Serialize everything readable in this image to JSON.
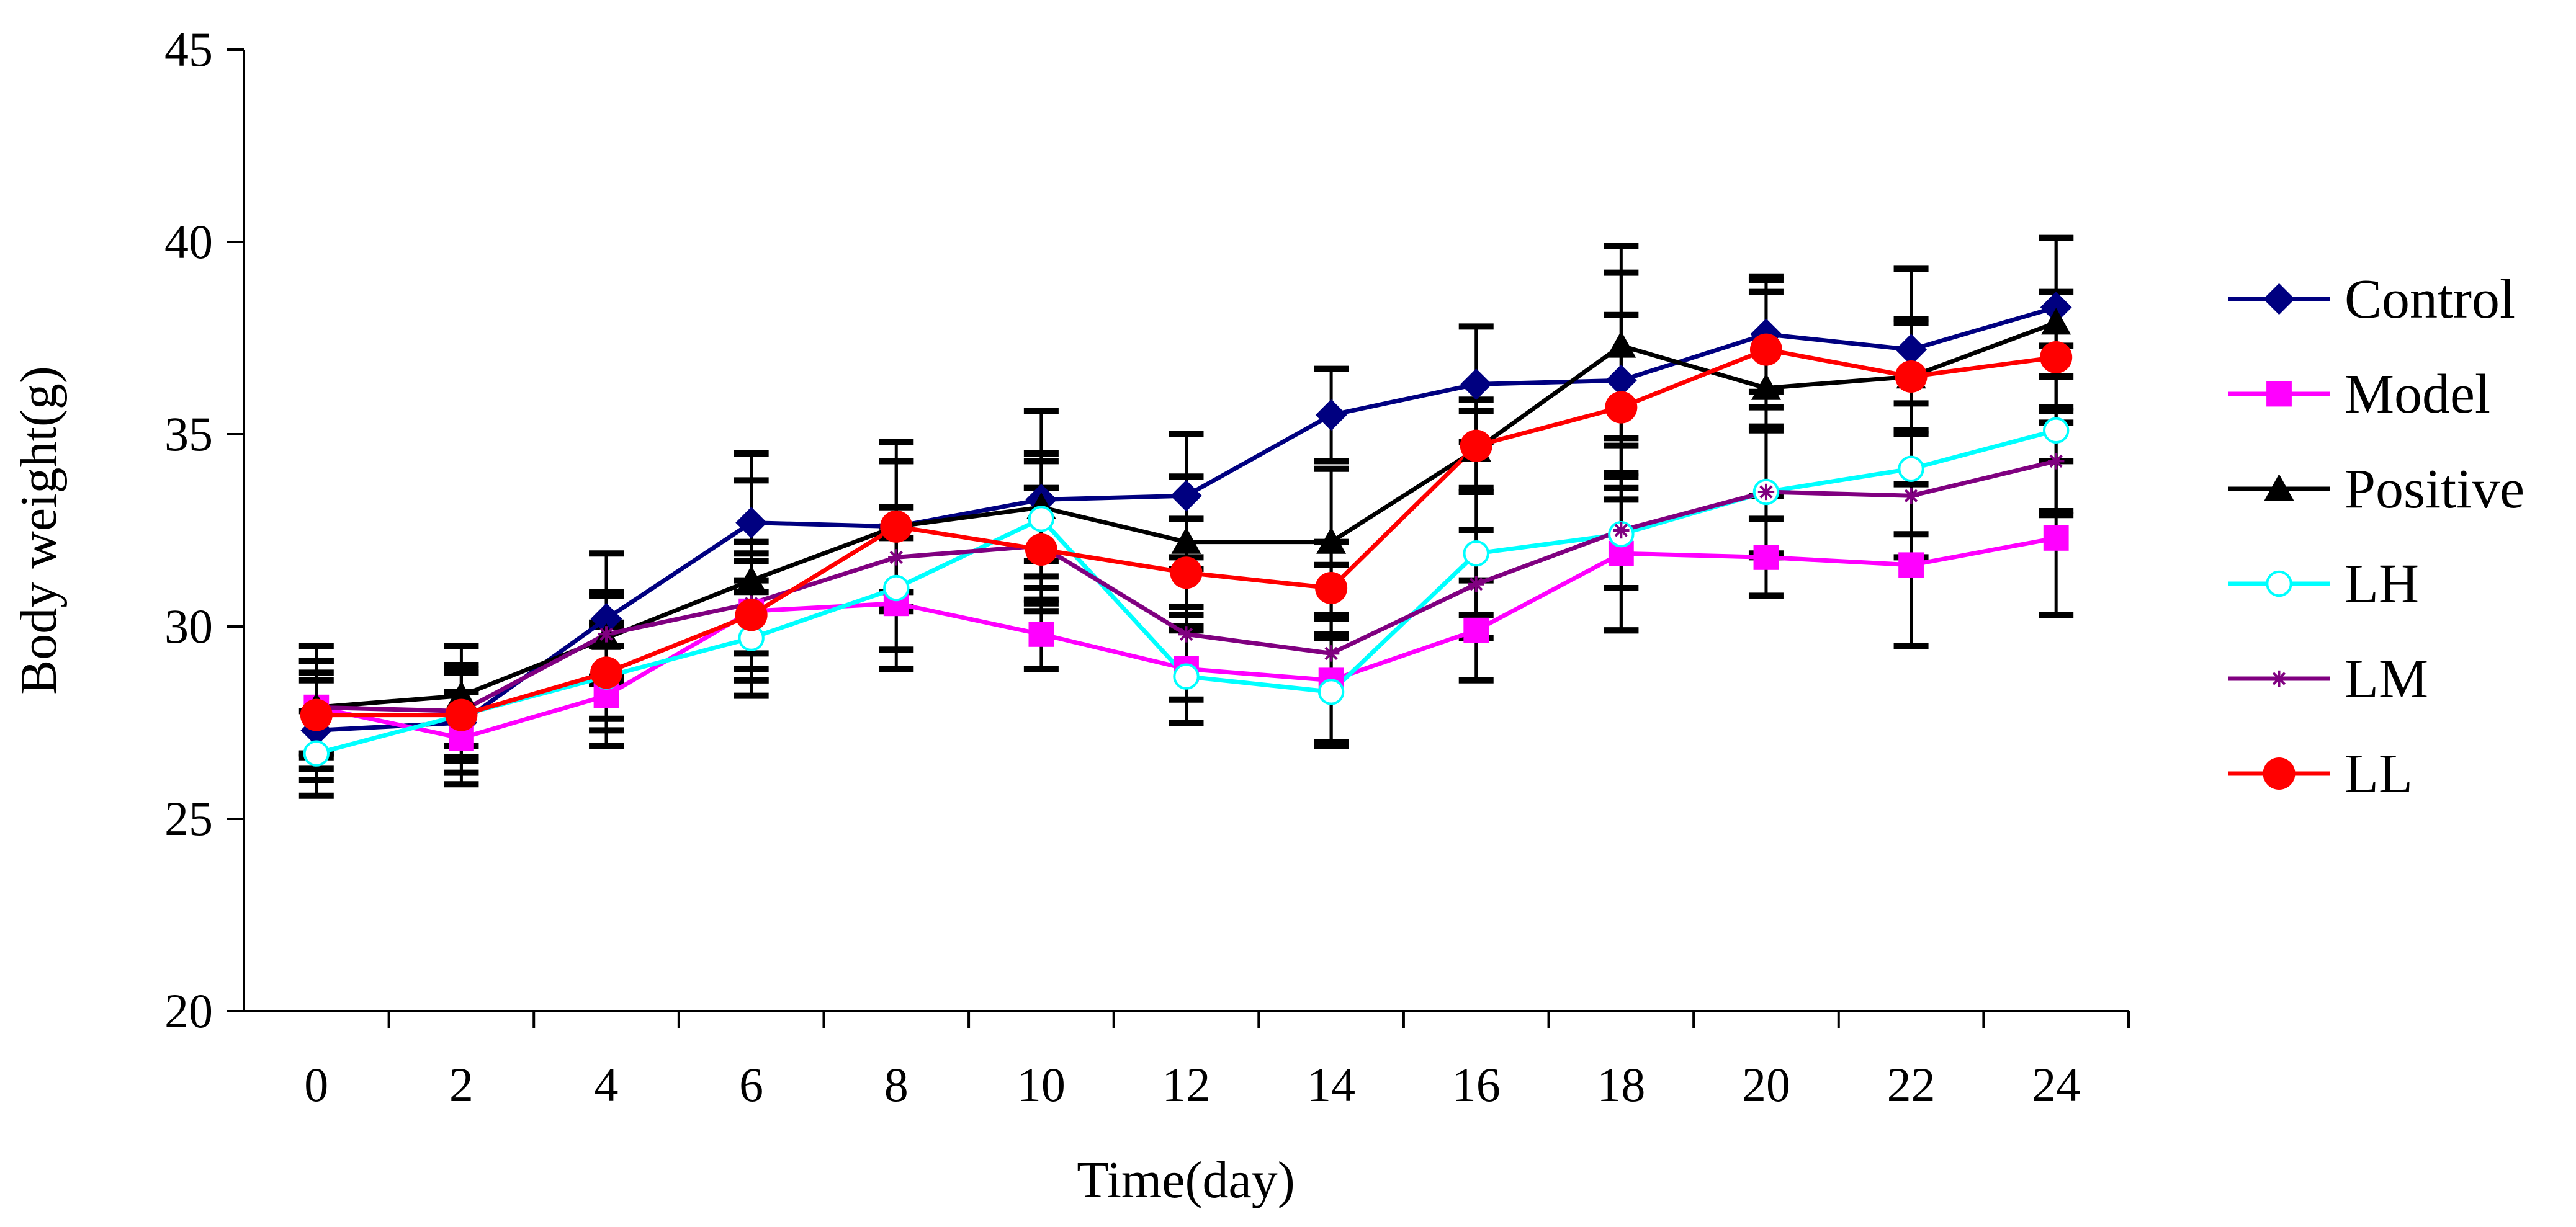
{
  "chart_data": {
    "type": "line",
    "title": "",
    "xlabel": "Time(day)",
    "ylabel": "Body weight(g)",
    "x": [
      0,
      2,
      4,
      6,
      8,
      10,
      12,
      14,
      16,
      18,
      20,
      22,
      24
    ],
    "xticks": [
      "0",
      "2",
      "4",
      "6",
      "8",
      "10",
      "12",
      "14",
      "16",
      "18",
      "20",
      "22",
      "24"
    ],
    "ylim": [
      20,
      45
    ],
    "yticks": [
      "20",
      "25",
      "30",
      "35",
      "40",
      "45"
    ],
    "grid": false,
    "legend_position": "right",
    "series": [
      {
        "name": "Control",
        "color": "#000080",
        "marker": "diamond",
        "values": [
          27.3,
          27.5,
          30.2,
          32.7,
          32.6,
          33.3,
          33.4,
          35.5,
          36.3,
          36.4,
          37.6,
          37.2,
          38.3
        ],
        "errors": [
          1.3,
          1.3,
          1.7,
          1.8,
          2.2,
          2.3,
          1.6,
          1.2,
          1.5,
          2.8,
          1.5,
          2.1,
          1.8
        ]
      },
      {
        "name": "Model",
        "color": "#FF00FF",
        "marker": "square",
        "values": [
          27.9,
          27.1,
          28.2,
          30.4,
          30.6,
          29.8,
          28.9,
          28.6,
          29.9,
          31.9,
          31.8,
          31.6,
          32.3
        ],
        "errors": [
          1.2,
          1.2,
          1.3,
          1.8,
          1.7,
          0.9,
          1.4,
          1.6,
          1.3,
          2.0,
          1.0,
          2.1,
          2.0
        ]
      },
      {
        "name": "Positive",
        "color": "#000000",
        "marker": "triangle",
        "values": [
          27.9,
          28.2,
          29.7,
          31.2,
          32.6,
          33.1,
          32.2,
          32.2,
          34.6,
          37.3,
          36.2,
          36.5,
          37.9
        ],
        "errors": [
          1.6,
          1.3,
          1.1,
          2.6,
          1.7,
          1.4,
          1.7,
          1.9,
          1.0,
          2.6,
          2.8,
          1.5,
          2.2
        ]
      },
      {
        "name": "LH",
        "color": "#00FFFF",
        "marker": "circle-open",
        "values": [
          26.7,
          27.7,
          28.7,
          29.7,
          31.0,
          32.8,
          28.7,
          28.3,
          31.9,
          32.4,
          33.5,
          34.1,
          35.1
        ],
        "errors": [
          1.1,
          1.2,
          1.4,
          1.5,
          1.6,
          1.5,
          1.2,
          1.4,
          1.6,
          2.5,
          1.6,
          1.7,
          2.2
        ]
      },
      {
        "name": "LM",
        "color": "#800080",
        "marker": "star",
        "values": [
          27.9,
          27.8,
          29.8,
          30.6,
          31.8,
          32.1,
          29.8,
          29.3,
          31.1,
          32.5,
          33.5,
          33.4,
          34.3
        ],
        "errors": [
          1.2,
          1.2,
          1.1,
          1.3,
          1.3,
          1.5,
          1.7,
          2.3,
          1.4,
          1.5,
          1.7,
          1.6,
          1.3
        ]
      },
      {
        "name": "LL",
        "color": "#FF0000",
        "marker": "circle",
        "values": [
          27.7,
          27.7,
          28.8,
          30.3,
          32.6,
          32.0,
          31.4,
          31.0,
          34.7,
          35.7,
          37.2,
          36.5,
          37.0
        ],
        "errors": [
          1.1,
          1.1,
          1.2,
          1.4,
          1.7,
          1.6,
          1.4,
          1.2,
          1.2,
          2.4,
          1.5,
          1.4,
          1.7
        ]
      }
    ]
  }
}
